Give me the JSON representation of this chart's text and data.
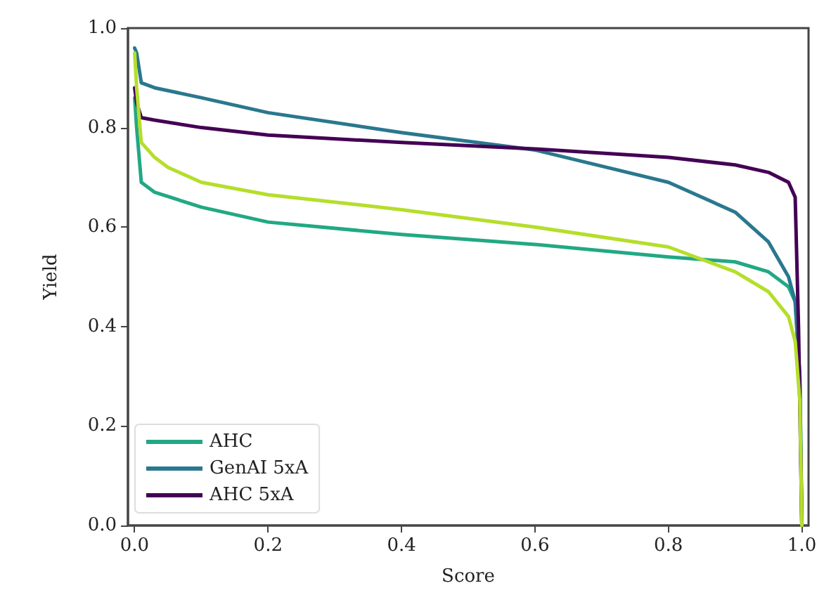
{
  "chart_data": {
    "type": "line",
    "xlabel": "Score",
    "ylabel": "Yield",
    "xlim": [
      -0.01,
      1.01
    ],
    "ylim": [
      0,
      1
    ],
    "xticks": [
      {
        "value": 0,
        "label": "0.0"
      },
      0.2,
      0.4,
      0.6,
      0.8,
      {
        "value": 1,
        "label": "1.0"
      }
    ],
    "yticks": [
      {
        "value": 0,
        "label": "0.0"
      },
      0.2,
      0.4,
      0.6,
      0.8,
      {
        "value": 1,
        "label": "1.0"
      }
    ],
    "grid": false,
    "legend": "bottom left",
    "marker": "none",
    "line_style": "solid",
    "series": [
      {
        "name": "AHC",
        "color": "#22a884",
        "x": [
          0,
          0.003,
          0.01,
          0.03,
          0.1,
          0.2,
          0.4,
          0.6,
          0.8,
          0.9,
          0.95,
          0.98,
          0.99,
          0.997,
          1
        ],
        "values": [
          0.86,
          0.8,
          0.69,
          0.67,
          0.64,
          0.61,
          0.585,
          0.565,
          0.54,
          0.53,
          0.51,
          0.48,
          0.45,
          0.3,
          0
        ]
      },
      {
        "name": "GenAI 5xA",
        "color": "#2a788e",
        "x": [
          0,
          0.003,
          0.01,
          0.03,
          0.1,
          0.2,
          0.4,
          0.6,
          0.8,
          0.9,
          0.95,
          0.98,
          0.99,
          0.997,
          1
        ],
        "values": [
          0.96,
          0.95,
          0.89,
          0.88,
          0.86,
          0.83,
          0.79,
          0.755,
          0.69,
          0.63,
          0.57,
          0.5,
          0.45,
          0.3,
          0
        ]
      },
      {
        "name": "AHC 5xA",
        "color": "#440154",
        "x": [
          0,
          0.003,
          0.01,
          0.03,
          0.1,
          0.2,
          0.4,
          0.6,
          0.8,
          0.9,
          0.95,
          0.98,
          0.99,
          0.995,
          1
        ],
        "values": [
          0.88,
          0.85,
          0.82,
          0.815,
          0.8,
          0.785,
          0.77,
          0.757,
          0.74,
          0.725,
          0.71,
          0.69,
          0.66,
          0.4,
          0
        ]
      },
      {
        "color": "#b5de2b",
        "x": [
          0,
          0.003,
          0.01,
          0.03,
          0.05,
          0.1,
          0.2,
          0.4,
          0.6,
          0.8,
          0.9,
          0.95,
          0.98,
          0.99,
          0.997,
          1
        ],
        "values": [
          0.95,
          0.88,
          0.77,
          0.74,
          0.72,
          0.69,
          0.665,
          0.635,
          0.6,
          0.56,
          0.51,
          0.47,
          0.42,
          0.37,
          0.25,
          0
        ]
      }
    ]
  }
}
